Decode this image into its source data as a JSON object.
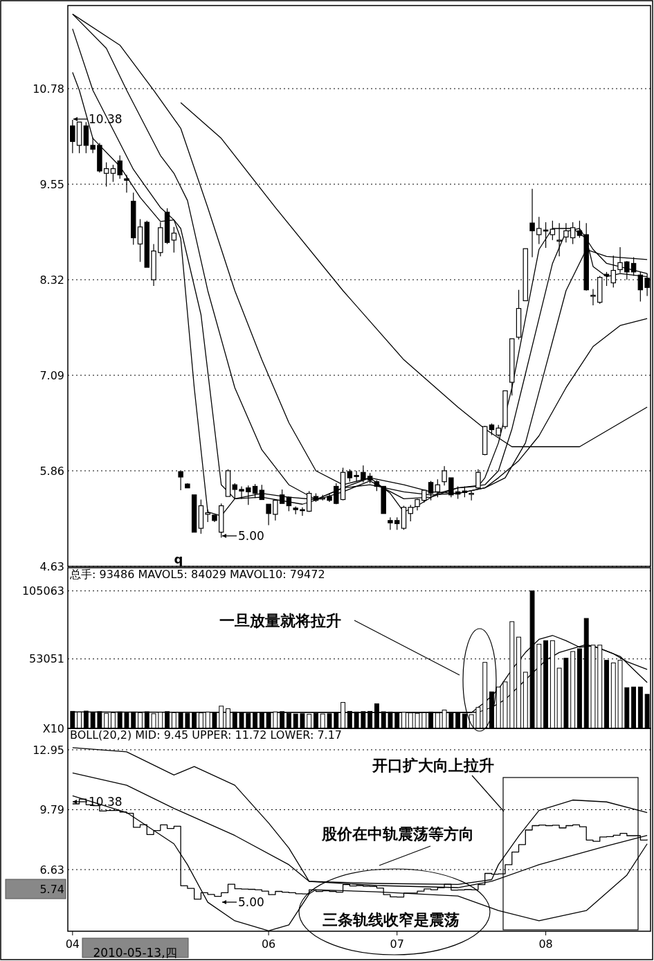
{
  "chart_data": [
    {
      "type": "candlestick",
      "categories": [
        null,
        null,
        null,
        null,
        null,
        null,
        null,
        null,
        null,
        null,
        null,
        null,
        null,
        null,
        null,
        null,
        null,
        null,
        null,
        null,
        null,
        null,
        null,
        null,
        null,
        null,
        null,
        null,
        null,
        null,
        null,
        null,
        null,
        null,
        null,
        null,
        null,
        null,
        null,
        null,
        null,
        null,
        null,
        null,
        null,
        null,
        null,
        null,
        null,
        null,
        null,
        null,
        null,
        null,
        null,
        null,
        null,
        null,
        null,
        null,
        null,
        null,
        null,
        null,
        null,
        null,
        null,
        null,
        null,
        null,
        null,
        null,
        null,
        null,
        null,
        null,
        null,
        null,
        null,
        null,
        null,
        null,
        null,
        null,
        null,
        null
      ],
      "ohlc": [
        [
          10.3,
          10.38,
          9.95,
          10.1
        ],
        [
          10.05,
          10.35,
          9.95,
          10.35
        ],
        [
          10.3,
          10.35,
          9.95,
          10.05
        ],
        [
          10.05,
          10.15,
          9.95,
          10.0
        ],
        [
          10.05,
          10.08,
          9.7,
          9.72
        ],
        [
          9.69,
          9.83,
          9.52,
          9.75
        ],
        [
          9.69,
          9.8,
          9.58,
          9.75
        ],
        [
          9.85,
          9.92,
          9.62,
          9.67
        ],
        [
          9.62,
          9.67,
          9.44,
          9.6
        ],
        [
          9.33,
          9.44,
          8.77,
          8.86
        ],
        [
          8.78,
          9.1,
          8.55,
          9.0
        ],
        [
          9.06,
          9.08,
          8.48,
          8.48
        ],
        [
          8.32,
          8.78,
          8.24,
          8.69
        ],
        [
          8.67,
          9.06,
          8.62,
          8.99
        ],
        [
          9.19,
          9.24,
          8.78,
          8.8
        ],
        [
          8.83,
          9.0,
          8.67,
          8.92
        ],
        [
          5.85,
          5.85,
          5.61,
          5.78
        ],
        [
          5.69,
          5.7,
          5.64,
          5.64
        ],
        [
          5.55,
          5.55,
          5.07,
          5.07
        ],
        [
          5.12,
          5.49,
          5.05,
          5.41
        ],
        [
          5.3,
          5.36,
          5.2,
          5.32
        ],
        [
          5.29,
          5.29,
          5.2,
          5.22
        ],
        [
          5.07,
          5.44,
          5.0,
          5.41
        ],
        [
          5.53,
          5.88,
          5.53,
          5.86
        ],
        [
          5.68,
          5.7,
          5.5,
          5.62
        ],
        [
          5.62,
          5.66,
          5.5,
          5.6
        ],
        [
          5.64,
          5.67,
          5.42,
          5.59
        ],
        [
          5.66,
          5.69,
          5.51,
          5.57
        ],
        [
          5.61,
          5.68,
          5.49,
          5.49
        ],
        [
          5.43,
          5.43,
          5.16,
          5.31
        ],
        [
          5.3,
          5.48,
          5.22,
          5.48
        ],
        [
          5.55,
          5.62,
          5.44,
          5.44
        ],
        [
          5.52,
          5.53,
          5.34,
          5.41
        ],
        [
          5.38,
          5.4,
          5.3,
          5.36
        ],
        [
          5.36,
          5.39,
          5.28,
          5.35
        ],
        [
          5.34,
          5.6,
          5.33,
          5.57
        ],
        [
          5.53,
          5.57,
          5.46,
          5.48
        ],
        [
          5.5,
          5.55,
          5.48,
          5.51
        ],
        [
          5.53,
          5.57,
          5.46,
          5.48
        ],
        [
          5.66,
          5.7,
          5.43,
          5.44
        ],
        [
          5.49,
          5.9,
          5.48,
          5.84
        ],
        [
          5.85,
          5.88,
          5.72,
          5.77
        ],
        [
          5.8,
          5.86,
          5.72,
          5.79
        ],
        [
          5.84,
          5.93,
          5.71,
          5.75
        ],
        [
          5.79,
          5.83,
          5.7,
          5.74
        ],
        [
          5.72,
          5.74,
          5.6,
          5.66
        ],
        [
          5.66,
          5.66,
          5.31,
          5.31
        ],
        [
          5.22,
          5.26,
          5.1,
          5.19
        ],
        [
          5.22,
          5.26,
          5.1,
          5.18
        ],
        [
          5.12,
          5.41,
          5.1,
          5.39
        ],
        [
          5.31,
          5.42,
          5.21,
          5.39
        ],
        [
          5.4,
          5.5,
          5.35,
          5.49
        ],
        [
          5.48,
          5.62,
          5.45,
          5.61
        ],
        [
          5.71,
          5.73,
          5.48,
          5.57
        ],
        [
          5.59,
          5.75,
          5.52,
          5.68
        ],
        [
          5.72,
          5.92,
          5.67,
          5.86
        ],
        [
          5.77,
          5.77,
          5.52,
          5.55
        ],
        [
          5.59,
          5.66,
          5.5,
          5.56
        ],
        [
          5.6,
          5.66,
          5.52,
          5.58
        ],
        [
          5.57,
          5.61,
          5.48,
          5.57
        ],
        [
          5.64,
          5.88,
          5.62,
          5.84
        ],
        [
          6.07,
          6.44,
          6.06,
          6.43
        ],
        [
          6.45,
          6.47,
          6.32,
          6.39
        ],
        [
          6.32,
          6.45,
          6.3,
          6.41
        ],
        [
          6.43,
          6.89,
          6.4,
          6.89
        ],
        [
          7.0,
          7.56,
          6.83,
          7.56
        ],
        [
          7.58,
          8.19,
          7.55,
          7.95
        ],
        [
          8.05,
          8.72,
          8.05,
          8.72
        ],
        [
          9.05,
          9.49,
          8.61,
          8.95
        ],
        [
          8.9,
          9.13,
          8.78,
          8.98
        ],
        [
          8.96,
          9.06,
          8.73,
          8.95
        ],
        [
          8.9,
          9.08,
          8.83,
          8.97
        ],
        [
          8.83,
          9.05,
          8.62,
          8.83
        ],
        [
          8.87,
          9.05,
          8.8,
          8.95
        ],
        [
          8.86,
          9.06,
          8.78,
          8.99
        ],
        [
          8.95,
          9.08,
          8.86,
          8.89
        ],
        [
          8.9,
          9.05,
          8.18,
          8.19
        ],
        [
          8.11,
          8.2,
          7.99,
          8.12
        ],
        [
          8.03,
          8.37,
          8.01,
          8.35
        ],
        [
          8.39,
          8.42,
          8.24,
          8.37
        ],
        [
          8.28,
          8.63,
          8.22,
          8.44
        ],
        [
          8.45,
          8.74,
          8.41,
          8.54
        ],
        [
          8.55,
          8.56,
          8.32,
          8.42
        ],
        [
          8.53,
          8.61,
          8.37,
          8.42
        ],
        [
          8.38,
          8.42,
          8.04,
          8.19
        ],
        [
          8.34,
          8.4,
          8.11,
          8.22
        ]
      ],
      "series": [
        {
          "type": "line",
          "color": "#000000",
          "values": [
            10.99,
            10.76,
            null,
            10.14,
            null,
            null,
            null,
            9.78,
            null,
            null,
            9.38,
            null,
            null,
            9.07,
            null,
            9.09,
            8.85,
            null,
            6.93,
            null,
            5.33,
            null,
            5.28,
            null,
            5.5,
            null,
            null,
            null,
            5.57,
            null,
            null,
            null,
            5.52,
            null,
            null,
            null,
            5.49,
            null,
            null,
            null,
            5.64,
            null,
            null,
            null,
            5.77,
            null,
            null,
            5.57,
            null,
            5.33,
            null,
            5.41,
            null,
            null,
            5.57,
            null,
            null,
            5.64,
            null,
            null,
            5.66,
            5.77,
            null,
            6.22,
            null,
            6.93,
            null,
            7.82,
            null,
            8.71,
            null,
            8.98,
            null,
            null,
            8.98,
            null,
            8.85,
            8.49,
            null,
            8.36,
            null,
            8.4,
            null,
            null,
            null,
            8.36
          ]
        },
        {
          "type": "line",
          "color": "#000000",
          "values": [
            11.55,
            null,
            null,
            10.76,
            null,
            null,
            null,
            null,
            null,
            9.74,
            null,
            null,
            null,
            9.25,
            null,
            9.09,
            8.98,
            null,
            null,
            7.87,
            null,
            null,
            5.68,
            null,
            5.5,
            null,
            null,
            null,
            5.52,
            null,
            null,
            null,
            null,
            null,
            5.43,
            null,
            null,
            null,
            null,
            null,
            5.59,
            null,
            null,
            null,
            5.73,
            null,
            null,
            null,
            null,
            5.5,
            null,
            null,
            null,
            5.52,
            null,
            null,
            null,
            5.64,
            null,
            null,
            null,
            5.68,
            null,
            5.86,
            null,
            6.4,
            null,
            7.11,
            null,
            7.82,
            null,
            8.53,
            null,
            8.94,
            null,
            8.98,
            null,
            8.71,
            null,
            8.53,
            null,
            null,
            null,
            null,
            null,
            8.4
          ]
        },
        {
          "type": "line",
          "color": "#000000",
          "values": [
            11.74,
            null,
            null,
            null,
            null,
            11.3,
            null,
            null,
            10.76,
            null,
            null,
            null,
            null,
            9.92,
            null,
            9.69,
            null,
            9.34,
            null,
            null,
            8.18,
            null,
            null,
            null,
            6.93,
            null,
            null,
            null,
            6.13,
            null,
            null,
            null,
            5.68,
            null,
            null,
            null,
            5.49,
            null,
            null,
            null,
            5.64,
            null,
            null,
            null,
            5.68,
            null,
            null,
            null,
            null,
            5.59,
            null,
            null,
            null,
            5.55,
            null,
            null,
            null,
            5.57,
            null,
            null,
            null,
            5.64,
            null,
            null,
            5.77,
            null,
            null,
            6.22,
            null,
            null,
            7.2,
            null,
            null,
            8.18,
            null,
            null,
            8.71,
            null,
            null,
            8.62,
            null,
            null,
            null,
            null,
            null,
            8.58
          ]
        },
        {
          "type": "line",
          "color": "#000000",
          "values": [
            11.74,
            null,
            null,
            null,
            null,
            null,
            null,
            11.34,
            null,
            null,
            null,
            null,
            10.76,
            null,
            null,
            null,
            10.27,
            null,
            null,
            null,
            9.25,
            null,
            null,
            null,
            8.18,
            null,
            null,
            null,
            7.29,
            null,
            null,
            null,
            6.48,
            null,
            null,
            null,
            5.86,
            null,
            null,
            null,
            5.68,
            null,
            null,
            null,
            5.77,
            null,
            null,
            null,
            null,
            5.68,
            null,
            null,
            null,
            5.59,
            null,
            null,
            null,
            5.57,
            null,
            null,
            null,
            5.64,
            null,
            5.77,
            null,
            null,
            5.99,
            null,
            null,
            6.31,
            null,
            null,
            null,
            6.93,
            null,
            null,
            null,
            7.46,
            null,
            null,
            null,
            7.73,
            null,
            null,
            null,
            7.82
          ]
        },
        {
          "type": "line",
          "color": "#000000",
          "values": [
            null,
            null,
            null,
            null,
            null,
            null,
            null,
            null,
            null,
            null,
            null,
            null,
            null,
            null,
            null,
            null,
            10.6,
            null,
            null,
            null,
            null,
            null,
            10.14,
            null,
            null,
            null,
            null,
            null,
            null,
            null,
            9.25,
            null,
            null,
            null,
            null,
            null,
            null,
            null,
            null,
            null,
            8.18,
            null,
            null,
            null,
            null,
            null,
            null,
            null,
            null,
            7.29,
            null,
            null,
            null,
            null,
            null,
            null,
            null,
            6.68,
            null,
            null,
            null,
            6.4,
            null,
            null,
            null,
            6.17,
            null,
            null,
            null,
            null,
            null,
            null,
            null,
            null,
            null,
            6.17,
            null,
            null,
            null,
            null,
            null,
            null,
            null,
            null,
            null,
            6.68
          ]
        }
      ],
      "ylim": [
        4.63,
        11.85
      ],
      "yticks": [
        4.63,
        5.86,
        7.09,
        8.32,
        9.55,
        10.78
      ],
      "grid": "y",
      "tick_labels": "y",
      "annotations": [
        "10.38",
        "5.00",
        "q"
      ]
    },
    {
      "type": "bar",
      "title": "总手: 93486 MAVOL5: 84029 MAVOL10: 79472",
      "categories": [
        null,
        null,
        null,
        null,
        null,
        null,
        null,
        null,
        null,
        null,
        null,
        null,
        null,
        null,
        null,
        null,
        null,
        null,
        null,
        null,
        null,
        null,
        null,
        null,
        null,
        null,
        null,
        null,
        null,
        null,
        null,
        null,
        null,
        null,
        null,
        null,
        null,
        null,
        null,
        null,
        null,
        null,
        null,
        null,
        null,
        null,
        null,
        null,
        null,
        null,
        null,
        null,
        null,
        null,
        null,
        null,
        null,
        null,
        null,
        null,
        null,
        null,
        null,
        null,
        null,
        null,
        null,
        null,
        null,
        null,
        null,
        null,
        null,
        null,
        null,
        null,
        null,
        null,
        null,
        null,
        null,
        null,
        null,
        null,
        null,
        null
      ],
      "values": [
        13000,
        12500,
        13200,
        12000,
        12800,
        11500,
        12000,
        12600,
        11800,
        12500,
        12000,
        12700,
        11200,
        12300,
        12800,
        12000,
        12400,
        11600,
        12200,
        11800,
        12500,
        12000,
        17000,
        15000,
        12500,
        12000,
        11500,
        12300,
        11800,
        12000,
        12600,
        12800,
        11500,
        11000,
        11200,
        10800,
        11500,
        11000,
        11200,
        12000,
        19800,
        13000,
        12500,
        12800,
        13000,
        18800,
        12700,
        12500,
        12000,
        12300,
        11800,
        11500,
        12000,
        12500,
        11800,
        14000,
        11500,
        12000,
        11000,
        10500,
        16000,
        50400,
        27900,
        31600,
        35500,
        81500,
        69700,
        42900,
        105063,
        64300,
        67000,
        67000,
        46000,
        53600,
        58700,
        60800,
        84000,
        63600,
        63600,
        52000,
        50000,
        52000,
        31100,
        31600,
        31600,
        26000
      ],
      "colors": [
        "#000000",
        "#ffffff",
        "#000000",
        "#000000",
        "#000000",
        "#ffffff",
        "#ffffff",
        "#000000",
        "#000000",
        "#000000",
        "#ffffff",
        "#000000",
        "#ffffff",
        "#ffffff",
        "#000000",
        "#ffffff",
        "#000000",
        "#000000",
        "#000000",
        "#ffffff",
        "#ffffff",
        "#000000",
        "#ffffff",
        "#ffffff",
        "#000000",
        "#000000",
        "#000000",
        "#000000",
        "#000000",
        "#000000",
        "#ffffff",
        "#000000",
        "#000000",
        "#000000",
        "#000000",
        "#ffffff",
        "#000000",
        "#ffffff",
        "#000000",
        "#000000",
        "#ffffff",
        "#000000",
        "#000000",
        "#000000",
        "#000000",
        "#000000",
        "#000000",
        "#000000",
        "#000000",
        "#ffffff",
        "#ffffff",
        "#ffffff",
        "#ffffff",
        "#000000",
        "#ffffff",
        "#ffffff",
        "#000000",
        "#000000",
        "#000000",
        "#ffffff",
        "#ffffff",
        "#ffffff",
        "#000000",
        "#ffffff",
        "#ffffff",
        "#ffffff",
        "#ffffff",
        "#ffffff",
        "#000000",
        "#ffffff",
        "#000000",
        "#ffffff",
        "#ffffff",
        "#000000",
        "#ffffff",
        "#000000",
        "#000000",
        "#ffffff",
        "#ffffff",
        "#000000",
        "#ffffff",
        "#ffffff",
        "#000000",
        "#000000",
        "#000000",
        "#000000"
      ],
      "series": [
        {
          "type": "line",
          "color": "#000000",
          "values": [
            12500,
            null,
            null,
            null,
            null,
            null,
            null,
            null,
            null,
            null,
            null,
            null,
            null,
            null,
            null,
            null,
            null,
            null,
            null,
            null,
            null,
            null,
            null,
            null,
            null,
            null,
            null,
            null,
            null,
            null,
            12200,
            null,
            null,
            null,
            null,
            null,
            null,
            null,
            null,
            null,
            null,
            null,
            null,
            null,
            null,
            null,
            null,
            null,
            null,
            null,
            null,
            null,
            null,
            null,
            null,
            null,
            null,
            null,
            null,
            12000,
            null,
            20000,
            null,
            30000,
            null,
            45000,
            null,
            58000,
            null,
            68000,
            null,
            71000,
            null,
            67000,
            null,
            62000,
            null,
            63000,
            null,
            59000,
            null,
            55000,
            null,
            45000,
            null,
            35000
          ]
        },
        {
          "type": "line",
          "color": "#000000",
          "values": [
            12500,
            null,
            null,
            null,
            null,
            null,
            null,
            null,
            null,
            null,
            null,
            null,
            null,
            null,
            null,
            null,
            null,
            null,
            null,
            null,
            null,
            null,
            null,
            null,
            null,
            null,
            null,
            null,
            null,
            null,
            12200,
            null,
            null,
            null,
            null,
            null,
            null,
            null,
            null,
            null,
            null,
            null,
            null,
            null,
            null,
            null,
            null,
            null,
            null,
            null,
            null,
            null,
            null,
            null,
            null,
            null,
            null,
            null,
            null,
            null,
            12300,
            null,
            16000,
            null,
            22000,
            null,
            32000,
            null,
            42000,
            null,
            52000,
            null,
            58000,
            null,
            61000,
            null,
            64000,
            null,
            61000,
            null,
            57000,
            null,
            51000,
            null,
            47000,
            45000
          ]
        }
      ],
      "ylim": [
        0,
        122700
      ],
      "yticks": [
        {
          "value": 0,
          "label": "X10"
        },
        53051,
        105063
      ],
      "grid": "y",
      "tick_labels": "y",
      "annotations": [
        "一旦放量就将拉升"
      ]
    },
    {
      "type": "line",
      "title": "BOLL(20,2) MID: 9.45 UPPER: 11.72 LOWER: 7.17",
      "categories": [
        "04",
        null,
        null,
        null,
        null,
        null,
        null,
        null,
        null,
        null,
        null,
        null,
        null,
        null,
        null,
        null,
        null,
        null,
        null,
        null,
        null,
        null,
        null,
        null,
        null,
        null,
        null,
        null,
        null,
        "06",
        null,
        null,
        null,
        null,
        null,
        null,
        null,
        null,
        null,
        null,
        null,
        null,
        null,
        null,
        null,
        null,
        null,
        null,
        "07",
        null,
        null,
        null,
        null,
        null,
        null,
        null,
        null,
        null,
        null,
        null,
        null,
        null,
        null,
        null,
        null,
        null,
        null,
        null,
        null,
        null,
        "08",
        null,
        null,
        null,
        null,
        null,
        null,
        null,
        null,
        null,
        null,
        null,
        null,
        null,
        null,
        null
      ],
      "series": [
        {
          "color": "#000000",
          "values": [
            13.06,
            null,
            null,
            null,
            null,
            null,
            null,
            null,
            12.84,
            null,
            null,
            null,
            null,
            null,
            null,
            11.62,
            null,
            null,
            12.07,
            null,
            null,
            null,
            null,
            null,
            11.08,
            null,
            null,
            null,
            null,
            9.09,
            null,
            null,
            7.77,
            null,
            null,
            6.01,
            null,
            null,
            null,
            null,
            null,
            null,
            null,
            null,
            null,
            5.9,
            null,
            null,
            null,
            null,
            null,
            null,
            null,
            null,
            null,
            null,
            null,
            5.85,
            null,
            null,
            null,
            null,
            6.1,
            6.89,
            null,
            null,
            8.4,
            null,
            null,
            9.75,
            null,
            null,
            null,
            null,
            10.3,
            null,
            null,
            null,
            null,
            10.2,
            null,
            null,
            null,
            null,
            null,
            9.64
          ]
        },
        {
          "color": "#000000",
          "values": [
            11.73,
            null,
            null,
            null,
            null,
            null,
            null,
            null,
            11.08,
            null,
            null,
            null,
            null,
            null,
            null,
            9.86,
            null,
            null,
            null,
            null,
            null,
            null,
            null,
            null,
            8.43,
            null,
            null,
            null,
            null,
            null,
            null,
            null,
            6.89,
            null,
            null,
            6.01,
            null,
            null,
            null,
            null,
            null,
            null,
            null,
            null,
            null,
            5.79,
            null,
            null,
            null,
            null,
            null,
            null,
            null,
            null,
            null,
            null,
            null,
            5.68,
            null,
            null,
            null,
            null,
            6.01,
            null,
            null,
            null,
            null,
            null,
            null,
            6.89,
            null,
            null,
            null,
            null,
            null,
            null,
            null,
            null,
            null,
            7.88,
            null,
            null,
            null,
            null,
            null,
            8.43
          ]
        },
        {
          "color": "#000000",
          "values": [
            10.52,
            null,
            null,
            null,
            null,
            null,
            null,
            null,
            9.64,
            null,
            null,
            null,
            null,
            null,
            null,
            7.99,
            null,
            6.89,
            null,
            null,
            4.91,
            null,
            null,
            null,
            3.93,
            null,
            null,
            null,
            null,
            3.4,
            null,
            null,
            3.71,
            null,
            null,
            5.35,
            5.57,
            null,
            null,
            null,
            null,
            null,
            null,
            null,
            null,
            5.46,
            null,
            null,
            null,
            null,
            null,
            null,
            null,
            null,
            null,
            null,
            null,
            5.24,
            null,
            null,
            null,
            null,
            null,
            4.47,
            null,
            null,
            null,
            null,
            null,
            3.93,
            null,
            null,
            null,
            null,
            null,
            null,
            4.47,
            null,
            null,
            null,
            null,
            null,
            6.34,
            null,
            null,
            7.99
          ]
        },
        {
          "type": "step",
          "color": "#000000",
          "values": [
            10.1,
            10.35,
            10.05,
            10.0,
            9.72,
            9.75,
            9.75,
            9.67,
            9.6,
            8.86,
            9.0,
            8.48,
            8.69,
            8.99,
            8.8,
            8.92,
            5.78,
            5.64,
            5.07,
            5.41,
            5.32,
            5.22,
            5.41,
            5.86,
            5.62,
            5.6,
            5.59,
            5.57,
            5.49,
            5.31,
            5.48,
            5.44,
            5.41,
            5.36,
            5.35,
            5.57,
            5.48,
            5.51,
            5.48,
            5.44,
            5.84,
            5.77,
            5.79,
            5.75,
            5.74,
            5.66,
            5.31,
            5.19,
            5.18,
            5.39,
            5.39,
            5.49,
            5.61,
            5.57,
            5.68,
            5.86,
            5.55,
            5.56,
            5.58,
            5.57,
            5.84,
            6.43,
            6.39,
            6.41,
            6.89,
            7.56,
            7.95,
            8.72,
            8.95,
            8.98,
            8.95,
            8.97,
            8.83,
            8.95,
            8.99,
            8.89,
            8.19,
            8.12,
            8.35,
            8.37,
            8.44,
            8.54,
            8.42,
            8.42,
            8.19,
            8.22
          ]
        }
      ],
      "ylim": [
        3.38,
        14.08
      ],
      "yticks": [
        6.63,
        9.79,
        12.95
      ],
      "grid": "y",
      "annotations": [
        "10.38",
        "5.00",
        "5.74",
        "开口扩大向上拉升",
        "股价在中轨震荡等方向",
        "三条轨线收窄是震荡",
        "2010-05-13,四"
      ]
    }
  ]
}
